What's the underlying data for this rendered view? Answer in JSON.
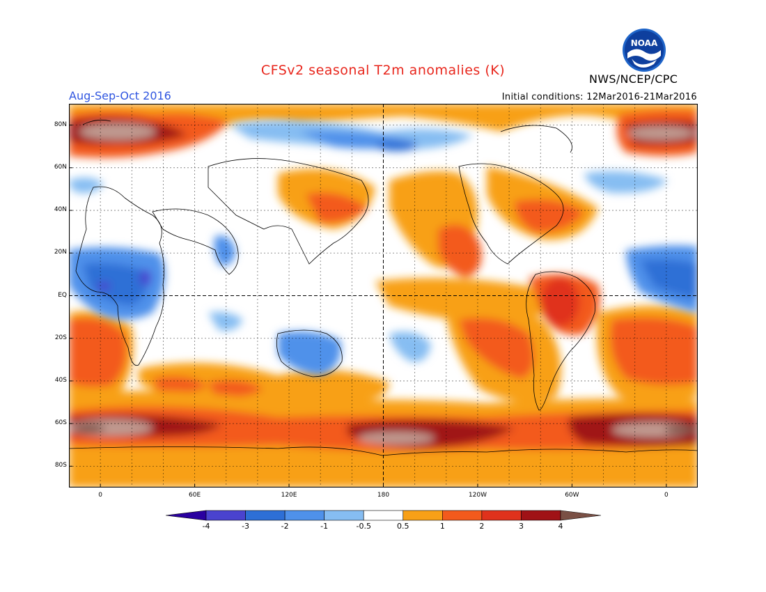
{
  "header": {
    "title": "CFSv2 seasonal T2m anomalies (K)",
    "season": "Aug-Sep-Oct 2016",
    "initial_conditions": "Initial conditions: 12Mar2016-21Mar2016",
    "agency": "NWS/NCEP/CPC",
    "logo_text": "NOAA"
  },
  "map": {
    "lon_labels": [
      "0",
      "60E",
      "120E",
      "180",
      "120W",
      "60W",
      "0"
    ],
    "lat_labels": [
      "80N",
      "60N",
      "40N",
      "20N",
      "EQ",
      "20S",
      "40S",
      "60S",
      "80S"
    ],
    "lon_range": [
      -20,
      380
    ],
    "lat_range": [
      -90,
      90
    ],
    "reference_lines": [
      "equator",
      "dateline"
    ],
    "anomaly_fields": [
      {
        "region": "Arctic Atlantic sector",
        "lon": [
          -20,
          75
        ],
        "lat": [
          64,
          86
        ],
        "level": 3
      },
      {
        "region": "North Pacific coast",
        "lon": [
          190,
          240
        ],
        "lat": [
          10,
          60
        ],
        "level": 0.5
      },
      {
        "region": "Eastern North Pacific",
        "lon": [
          215,
          240
        ],
        "lat": [
          15,
          35
        ],
        "level": 1
      },
      {
        "region": "Northwest Atlantic",
        "lon": [
          280,
          320
        ],
        "lat": [
          30,
          45
        ],
        "level": 1
      },
      {
        "region": "Northern South America",
        "lon": [
          285,
          320
        ],
        "lat": [
          -15,
          10
        ],
        "level": 2
      },
      {
        "region": "Southeast Pacific",
        "lon": [
          200,
          280
        ],
        "lat": [
          -45,
          -10
        ],
        "level": 1
      },
      {
        "region": "South Atlantic",
        "lon": [
          310,
          380
        ],
        "lat": [
          -50,
          -10
        ],
        "level": 1
      },
      {
        "region": "Southeast Atlantic",
        "lon": [
          -20,
          20
        ],
        "lat": [
          -50,
          -10
        ],
        "level": 1
      },
      {
        "region": "Southern Ocean",
        "lon": [
          -20,
          380
        ],
        "lat": [
          -75,
          -55
        ],
        "level": 2
      },
      {
        "region": "Antarctica",
        "lon": [
          -20,
          380
        ],
        "lat": [
          -90,
          -70
        ],
        "level": 0.5
      },
      {
        "region": "Equatorial Atlantic and Africa",
        "lon": [
          -20,
          60
        ],
        "lat": [
          -10,
          22
        ],
        "level": -1
      },
      {
        "region": "Arctic North Pacific",
        "lon": [
          150,
          240
        ],
        "lat": [
          70,
          82
        ],
        "level": -1
      },
      {
        "region": "Australia",
        "lon": [
          110,
          150
        ],
        "lat": [
          -35,
          -15
        ],
        "level": -1
      },
      {
        "region": "Indian Subcontinent",
        "lon": [
          70,
          90
        ],
        "lat": [
          10,
          30
        ],
        "level": -1
      }
    ]
  },
  "colorbar": {
    "labels": [
      "-4",
      "-3",
      "-2",
      "-1",
      "-0.5",
      "0.5",
      "1",
      "2",
      "3",
      "4"
    ],
    "colors": {
      "-4": "#2a00a0",
      "-3": "#4a43cf",
      "-2": "#2d6fd6",
      "-1": "#4f91ea",
      "-0.5": "#86bdf2",
      "0": "#ffffff",
      "0.5": "#f8a017",
      "1": "#f35a1c",
      "2": "#e0321c",
      "3": "#a01216",
      "4": "#c09a90",
      "max": "#7a5045"
    }
  }
}
